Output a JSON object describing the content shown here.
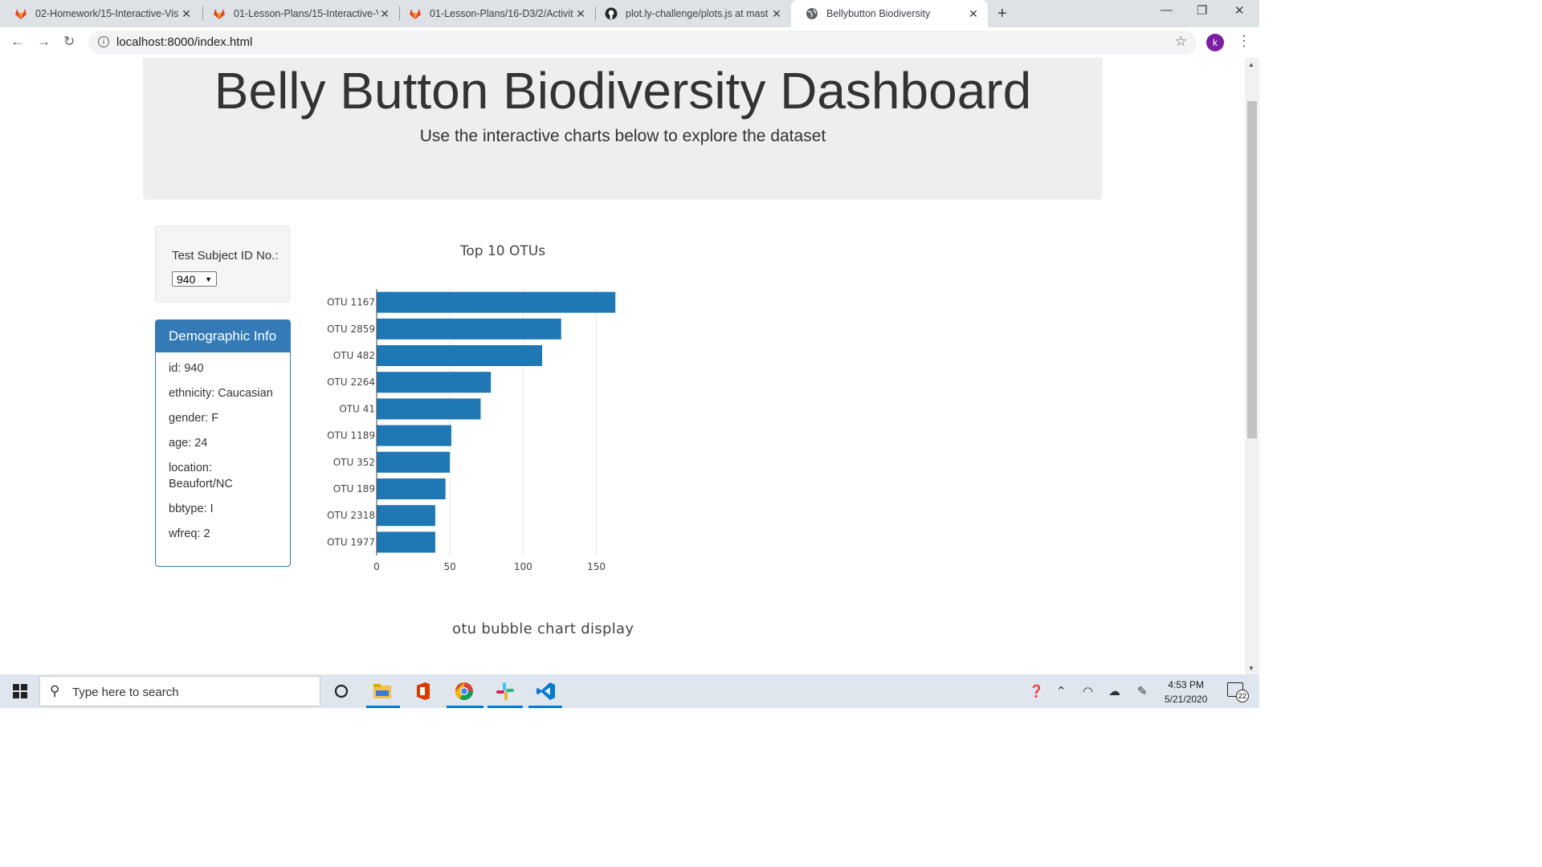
{
  "browser": {
    "tabs": [
      {
        "title": "02-Homework/15-Interactive-Vis",
        "icon": "gitlab-icon"
      },
      {
        "title": "01-Lesson-Plans/15-Interactive-V",
        "icon": "gitlab-icon"
      },
      {
        "title": "01-Lesson-Plans/16-D3/2/Activit",
        "icon": "gitlab-icon"
      },
      {
        "title": "plot.ly-challenge/plots.js at mast",
        "icon": "github-icon"
      },
      {
        "title": "Bellybutton Biodiversity",
        "icon": "globe-icon"
      }
    ],
    "url": "localhost:8000/index.html",
    "profile_initial": "k",
    "profile_color": "#7b1fa2"
  },
  "page": {
    "title": "Belly Button Biodiversity Dashboard",
    "subtitle": "Use the interactive charts below to explore the dataset",
    "selector_label": "Test Subject ID No.:",
    "selected_id": "940",
    "demographic": {
      "heading": "Demographic Info",
      "rows": [
        "id: 940",
        "ethnicity: Caucasian",
        "gender: F",
        "age: 24",
        "location: Beaufort/NC",
        "bbtype: I",
        "wfreq: 2"
      ]
    },
    "bubble_title": "otu bubble chart display",
    "accent": "#337ab7"
  },
  "chart_data": {
    "type": "bar",
    "orientation": "horizontal",
    "title": "Top 10 OTUs",
    "categories": [
      "OTU 1167",
      "OTU 2859",
      "OTU 482",
      "OTU 2264",
      "OTU 41",
      "OTU 1189",
      "OTU 352",
      "OTU 189",
      "OTU 2318",
      "OTU 1977"
    ],
    "values": [
      163,
      126,
      113,
      78,
      71,
      51,
      50,
      47,
      40,
      40
    ],
    "xlim": [
      0,
      170
    ],
    "xticks": [
      0,
      50,
      100,
      150
    ],
    "grid": true,
    "color": "#1f77b4"
  },
  "taskbar": {
    "search_placeholder": "Type here to search",
    "time": "4:53 PM",
    "date": "5/21/2020",
    "notifications": "22"
  }
}
